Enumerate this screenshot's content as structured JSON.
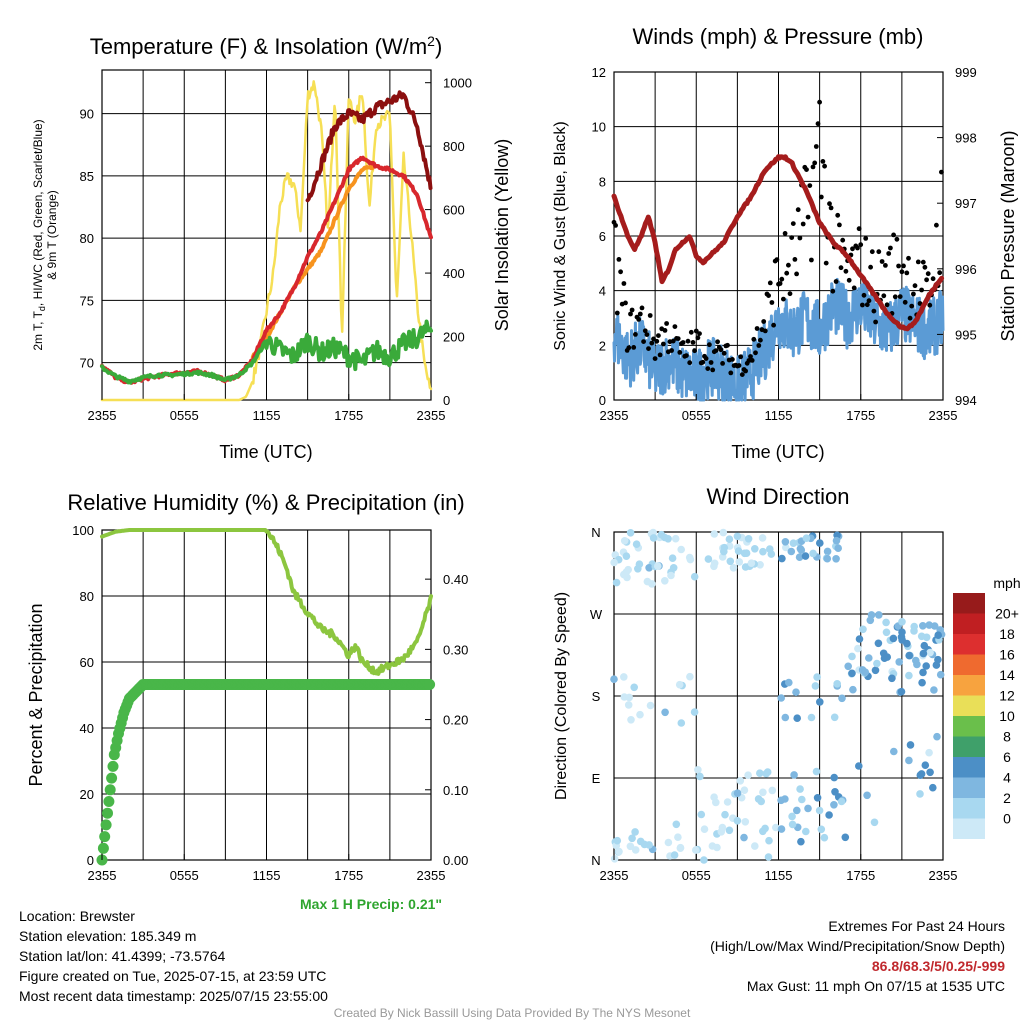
{
  "colors": {
    "t2m": "#d8272d",
    "dewpoint": "#3aaa3a",
    "heatindex": "#8b0f0f",
    "t9m": "#f7931e",
    "solar": "#f6df55",
    "wind": "#5b9bd5",
    "gust": "#000000",
    "pressure": "#a51c1c",
    "rh": "#8cc63f",
    "precip": "#49b649"
  },
  "x_ticks": [
    "2355",
    "0555",
    "1155",
    "1755",
    "2355"
  ],
  "panels": {
    "temperature": {
      "title": "Temperature (F) & Insolation (W/m²)",
      "xlabel": "Time (UTC)",
      "ylabel_left_line1": "2m T, T",
      "ylabel_left_sub": "d",
      "ylabel_left_line1b": ", HI/WC (Red, Green, Scarlet/Blue)",
      "ylabel_left_line2": "& 9m T (Orange)",
      "ylabel_right": "Solar Insolation (Yellow)",
      "left_ticks": [
        "70",
        "75",
        "80",
        "85",
        "90"
      ],
      "right_ticks": [
        "0",
        "200",
        "400",
        "600",
        "800",
        "1000"
      ]
    },
    "winds": {
      "title": "Winds (mph) & Pressure (mb)",
      "xlabel": "Time (UTC)",
      "ylabel_left": "Sonic Wind & Gust (Blue, Black)",
      "ylabel_right": "Station Pressure (Maroon)",
      "left_ticks": [
        "0",
        "2",
        "4",
        "6",
        "8",
        "10",
        "12"
      ],
      "right_ticks": [
        "994",
        "995",
        "996",
        "997",
        "998",
        "999"
      ]
    },
    "humidity": {
      "title": "Relative Humidity (%) & Precipitation (in)",
      "ylabel_left": "Percent & Precipitation",
      "left_ticks": [
        "0",
        "20",
        "40",
        "60",
        "80",
        "100"
      ],
      "right_ticks": [
        "0.00",
        "0.10",
        "0.20",
        "0.30",
        "0.40"
      ],
      "max_precip_label": "Max 1 H Precip: 0.21\""
    },
    "direction": {
      "title": "Wind Direction",
      "ylabel_left": "Direction (Colored By Speed)",
      "dir_ticks": [
        "N",
        "E",
        "S",
        "W",
        "N"
      ],
      "legend_unit": "mph",
      "legend_labels": [
        "0",
        "2",
        "4",
        "6",
        "8",
        "10",
        "12",
        "14",
        "16",
        "18",
        "20+"
      ],
      "legend_colors": [
        "#cde9f7",
        "#a8d8f0",
        "#7fb7e0",
        "#4c8fc6",
        "#3fa06a",
        "#6abf4b",
        "#e9df58",
        "#f7a33f",
        "#ef6a2f",
        "#dd2f2f",
        "#c01f22",
        "#971b1b"
      ]
    }
  },
  "chart_data": [
    {
      "type": "line",
      "title": "Temperature (F) & Insolation (W/m²)",
      "xlabel": "Time (UTC)",
      "x_hours_ticks": [
        "2355",
        "0555",
        "1155",
        "1755",
        "2355"
      ],
      "ylim": [
        67,
        93.5
      ],
      "y2lim": [
        0,
        1040
      ],
      "series": [
        {
          "name": "2m T",
          "axis": "left",
          "x": [
            0,
            1,
            2,
            3,
            4,
            5,
            6,
            7,
            8,
            9,
            10,
            11,
            11.5,
            12,
            13,
            14,
            15,
            16,
            17,
            18,
            19,
            20,
            21,
            22,
            23,
            24
          ],
          "y": [
            69.8,
            68.8,
            68.4,
            68.7,
            68.9,
            69.1,
            69.2,
            69.3,
            69.0,
            68.6,
            69.0,
            70.2,
            71.5,
            72.6,
            74.0,
            76.0,
            78.5,
            80.5,
            83.0,
            85.5,
            86.5,
            85.8,
            85.5,
            85.0,
            83.5,
            80.0
          ]
        },
        {
          "name": "Dewpoint",
          "axis": "left",
          "x": [
            0,
            1,
            2,
            3,
            4,
            5,
            6,
            7,
            8,
            9,
            10,
            11,
            12,
            13,
            14,
            15,
            16,
            17,
            18,
            19,
            20,
            21,
            22,
            23,
            24
          ],
          "y": [
            69.6,
            68.9,
            68.5,
            68.8,
            69.0,
            69.0,
            69.1,
            69.2,
            69.0,
            68.6,
            69.0,
            70.0,
            71.8,
            71.0,
            70.5,
            71.8,
            70.8,
            71.2,
            70.5,
            70.0,
            71.0,
            70.5,
            71.5,
            72.0,
            72.8
          ]
        },
        {
          "name": "Heat Index",
          "axis": "left",
          "x": [
            15,
            16,
            17,
            18,
            19,
            20,
            21,
            22,
            23,
            24
          ],
          "y": [
            83.0,
            86.0,
            89.0,
            90.0,
            89.5,
            90.5,
            91.0,
            91.5,
            89.0,
            84.0
          ]
        },
        {
          "name": "9m T",
          "axis": "left",
          "x": [
            11,
            12,
            13,
            14,
            15,
            16,
            17,
            18,
            19,
            20
          ],
          "y": [
            70.5,
            72.0,
            74.0,
            76.0,
            77.5,
            79.0,
            81.5,
            84.0,
            85.5,
            85.8
          ]
        },
        {
          "name": "Solar",
          "axis": "right",
          "x": [
            0,
            2,
            4,
            6,
            8,
            10,
            10.5,
            11,
            11.5,
            12,
            12.5,
            13,
            13.5,
            14,
            14.5,
            15,
            15.5,
            16,
            16.5,
            17,
            17.5,
            18,
            18.5,
            19,
            19.5,
            20,
            20.5,
            21,
            21.5,
            22,
            22.5,
            23,
            23.5,
            24
          ],
          "y": [
            0,
            0,
            0,
            0,
            0,
            0,
            10,
            60,
            160,
            280,
            400,
            620,
            700,
            680,
            540,
            960,
            1000,
            850,
            520,
            980,
            200,
            950,
            880,
            980,
            600,
            870,
            880,
            900,
            300,
            760,
            550,
            300,
            120,
            20
          ]
        }
      ]
    },
    {
      "type": "line",
      "title": "Winds (mph) & Pressure (mb)",
      "xlabel": "Time (UTC)",
      "ylim": [
        0,
        12
      ],
      "y2lim": [
        994,
        999
      ],
      "series": [
        {
          "name": "Sonic Wind",
          "axis": "left",
          "x": [
            0,
            1,
            2,
            3,
            4,
            5,
            6,
            7,
            8,
            9,
            10,
            11,
            12,
            13,
            14,
            15,
            16,
            17,
            18,
            19,
            20,
            21,
            22,
            23,
            24
          ],
          "y": [
            2.5,
            1.5,
            2.0,
            1.0,
            1.5,
            1.0,
            0.8,
            1.2,
            1.0,
            0.5,
            1.0,
            1.8,
            3.0,
            2.5,
            3.0,
            2.5,
            3.5,
            3.0,
            3.5,
            2.8,
            2.5,
            3.2,
            2.8,
            2.5,
            3.0
          ]
        },
        {
          "name": "Gust",
          "axis": "left",
          "x": [
            0,
            1,
            2,
            3,
            4,
            5,
            6,
            7,
            8,
            9,
            10,
            11,
            12,
            13,
            14,
            15,
            16,
            17,
            18,
            19,
            20,
            21,
            22,
            23,
            24
          ],
          "y": [
            6.5,
            3.0,
            3.5,
            2.5,
            3.0,
            2.0,
            2.5,
            2.0,
            2.0,
            1.5,
            2.0,
            3.5,
            5.5,
            6.0,
            8.0,
            11.0,
            6.5,
            5.5,
            6.0,
            5.0,
            5.5,
            6.0,
            5.0,
            4.5,
            8.5
          ]
        },
        {
          "name": "Pressure",
          "axis": "right",
          "x": [
            0,
            0.5,
            1,
            1.5,
            2,
            2.5,
            3,
            3.5,
            4,
            4.5,
            5,
            5.5,
            6,
            6.5,
            7,
            7.5,
            8,
            9,
            10,
            11,
            12,
            12.5,
            13,
            14,
            15,
            16,
            17,
            18,
            19,
            20,
            21,
            21.5,
            22,
            22.5,
            23,
            24
          ],
          "y": [
            997.1,
            996.8,
            996.5,
            996.3,
            996.5,
            996.8,
            996.4,
            995.8,
            996.0,
            996.3,
            996.4,
            996.5,
            996.2,
            996.1,
            996.2,
            996.3,
            996.4,
            996.8,
            997.1,
            997.5,
            997.7,
            997.7,
            997.6,
            997.2,
            996.7,
            996.4,
            996.2,
            995.9,
            995.6,
            995.3,
            995.1,
            995.1,
            995.2,
            995.4,
            995.6,
            995.9
          ]
        }
      ]
    },
    {
      "type": "line",
      "title": "Relative Humidity (%) & Precipitation (in)",
      "ylim": [
        0,
        100
      ],
      "y2lim": [
        0,
        0.47
      ],
      "series": [
        {
          "name": "RH",
          "axis": "left",
          "x": [
            0,
            1,
            2,
            4,
            6,
            8,
            10,
            11,
            12,
            12.5,
            13,
            13.5,
            14,
            15,
            16,
            17,
            18,
            18.5,
            19,
            20,
            21,
            22,
            23,
            24
          ],
          "y": [
            98,
            99.5,
            100,
            100,
            100,
            100,
            100,
            100,
            100,
            97,
            93,
            88,
            81,
            75,
            70,
            68,
            62,
            65,
            60,
            57,
            59,
            61,
            66,
            79
          ]
        },
        {
          "name": "Precip",
          "axis": "right",
          "x": [
            0,
            0.3,
            0.6,
            0.9,
            1.2,
            1.6,
            2.0,
            2.5,
            3,
            4,
            6,
            8,
            10,
            12,
            14,
            16,
            18,
            20,
            22,
            24
          ],
          "y": [
            0,
            0.05,
            0.1,
            0.15,
            0.18,
            0.21,
            0.23,
            0.24,
            0.25,
            0.25,
            0.25,
            0.25,
            0.25,
            0.25,
            0.25,
            0.25,
            0.25,
            0.25,
            0.25,
            0.25
          ]
        }
      ]
    },
    {
      "type": "scatter",
      "title": "Wind Direction",
      "ylim": [
        0,
        360
      ],
      "points_hint": "direction vs time, colored by speed"
    }
  ],
  "meta": {
    "location": "Location: Brewster",
    "elevation": "Station elevation: 185.349 m",
    "latlon": "Station lat/lon: 41.4399; -73.5764",
    "created": "Figure created on Tue, 2025-07-15, at 23:59 UTC",
    "recent": "Most recent data timestamp: 2025/07/15 23:55:00",
    "extremes_title": "Extremes For Past 24 Hours",
    "extremes_sub": "(High/Low/Max Wind/Precipitation/Snow Depth)",
    "extremes_values": "86.8/68.3/5/0.25/-999",
    "max_gust": "Max Gust: 11 mph On 07/15 at 1535 UTC",
    "credit": "Created By Nick Bassill Using Data Provided By The NYS Mesonet"
  }
}
